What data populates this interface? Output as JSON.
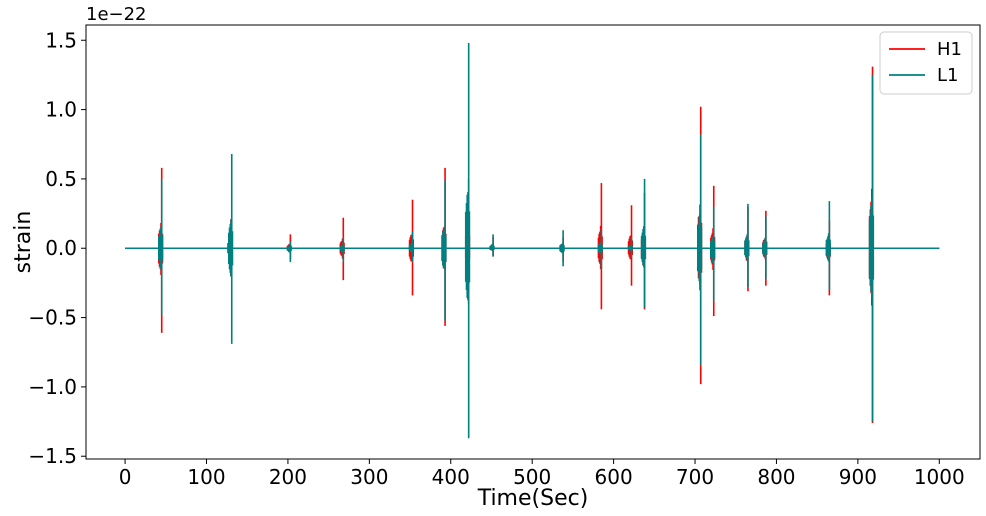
{
  "chart_data": {
    "type": "line",
    "title": "",
    "xlabel": "Time(Sec)",
    "ylabel": "strain",
    "y_offset_label": "1e−22",
    "xlim": [
      -48,
      1050
    ],
    "ylim": [
      -1.52,
      1.61
    ],
    "xticks": [
      0,
      100,
      200,
      300,
      400,
      500,
      600,
      700,
      800,
      900,
      1000
    ],
    "xtick_labels": [
      "0",
      "100",
      "200",
      "300",
      "400",
      "500",
      "600",
      "700",
      "800",
      "900",
      "1000"
    ],
    "yticks": [
      -1.5,
      -1.0,
      -0.5,
      0.0,
      0.5,
      1.0,
      1.5
    ],
    "ytick_labels": [
      "−1.5",
      "−1.0",
      "−0.5",
      "0.0",
      "0.5",
      "1.0",
      "1.5"
    ],
    "grid": false,
    "legend_position": "top-right",
    "baseline_range": [
      0,
      1000
    ],
    "series": [
      {
        "name": "H1",
        "color": "#ff0000",
        "events": [
          {
            "t": 45,
            "max": 0.58,
            "min": -0.61
          },
          {
            "t": 130,
            "max": 0.21,
            "min": -0.2
          },
          {
            "t": 203,
            "max": 0.1,
            "min": -0.08
          },
          {
            "t": 268,
            "max": 0.22,
            "min": -0.23
          },
          {
            "t": 353,
            "max": 0.35,
            "min": -0.34
          },
          {
            "t": 393,
            "max": 0.58,
            "min": -0.56
          },
          {
            "t": 422,
            "max": 0.5,
            "min": -0.4
          },
          {
            "t": 452,
            "max": 0.08,
            "min": -0.06
          },
          {
            "t": 538,
            "max": 0.08,
            "min": -0.1
          },
          {
            "t": 585,
            "max": 0.47,
            "min": -0.44
          },
          {
            "t": 622,
            "max": 0.31,
            "min": -0.27
          },
          {
            "t": 638,
            "max": 0.4,
            "min": -0.44
          },
          {
            "t": 707,
            "max": 1.02,
            "min": -0.98
          },
          {
            "t": 723,
            "max": 0.45,
            "min": -0.49
          },
          {
            "t": 765,
            "max": 0.3,
            "min": -0.31
          },
          {
            "t": 787,
            "max": 0.27,
            "min": -0.27
          },
          {
            "t": 865,
            "max": 0.2,
            "min": -0.34
          },
          {
            "t": 918,
            "max": 1.31,
            "min": -1.26
          }
        ]
      },
      {
        "name": "L1",
        "color": "#008080",
        "events": [
          {
            "t": 45,
            "max": 0.5,
            "min": -0.48
          },
          {
            "t": 131,
            "max": 0.68,
            "min": -0.69
          },
          {
            "t": 203,
            "max": 0.05,
            "min": -0.1
          },
          {
            "t": 268,
            "max": 0.08,
            "min": -0.1
          },
          {
            "t": 353,
            "max": 0.12,
            "min": -0.1
          },
          {
            "t": 393,
            "max": 0.49,
            "min": -0.52
          },
          {
            "t": 422,
            "max": 1.48,
            "min": -1.37
          },
          {
            "t": 452,
            "max": 0.1,
            "min": -0.06
          },
          {
            "t": 538,
            "max": 0.13,
            "min": -0.13
          },
          {
            "t": 585,
            "max": 0.14,
            "min": -0.15
          },
          {
            "t": 622,
            "max": 0.08,
            "min": -0.07
          },
          {
            "t": 638,
            "max": 0.5,
            "min": -0.43
          },
          {
            "t": 707,
            "max": 0.82,
            "min": -0.84
          },
          {
            "t": 723,
            "max": 0.3,
            "min": -0.38
          },
          {
            "t": 765,
            "max": 0.32,
            "min": -0.28
          },
          {
            "t": 787,
            "max": 0.23,
            "min": -0.22
          },
          {
            "t": 865,
            "max": 0.34,
            "min": -0.3
          },
          {
            "t": 918,
            "max": 1.25,
            "min": -1.25
          }
        ]
      }
    ]
  }
}
